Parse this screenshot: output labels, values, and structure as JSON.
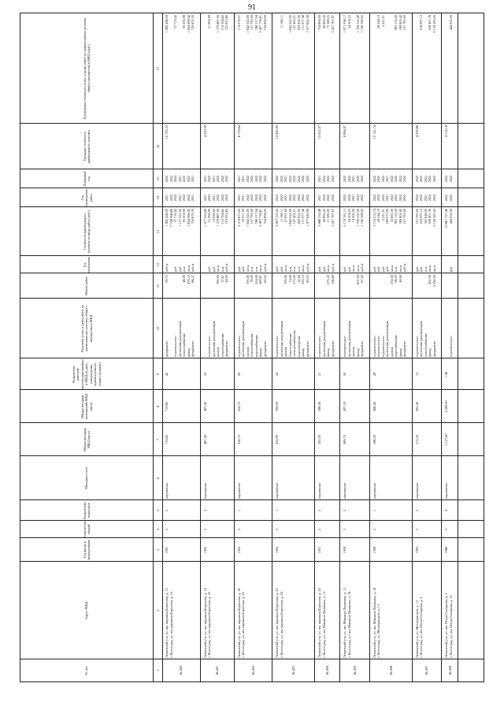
{
  "page_number": "91",
  "headers": [
    "№ п/п",
    "Адрес МКД",
    "Год ввода в эксплуатацию",
    "Количество этажей",
    "Количество подъездов",
    "Материал стен",
    "Общая площадь МКД (кв.м)",
    "Общая площадь помещений МКД (кв.м)",
    "Количество жителей, зарегистрированных в МКД на дату утверждения краткосрочного плана (человек)",
    "Перечень услуг и (или) работ по капитальному ремонту общего имущества в МКД",
    "Объем работ",
    "Ед. измерения",
    "Стоимость капитального ремонта по виду работ (руб.)",
    "Год проведения работ",
    "Плановый год",
    "Удельная стоимость капитального ремонта",
    "Предельная стоимость услуг и (или) работ по капитальному ремонту общего имущества в МКД (руб.)"
  ],
  "column_numbers": [
    "1",
    "2",
    "3",
    "4",
    "5",
    "6",
    "7",
    "8",
    "9",
    "10",
    "11",
    "12",
    "13",
    "14",
    "15",
    "16",
    "17"
  ],
  "rows": [
    {
      "num": "56.490",
      "address": [
        "Ленинский р-н, ул. им. маршала Бирюзова, д. 15",
        "г. Волгоград, ул. им. маршала Бирюзова, д. 14"
      ],
      "year": "1991",
      "floors": "2",
      "entrances": "2",
      "material": "кирпичные",
      "area_total": "719,60",
      "area_premises": "719,60",
      "residents": "42",
      "works": [
        "фундамент",
        "",
        "строительного",
        "проектная документация",
        "теплоснабжение",
        "фасад",
        "фундамент"
      ],
      "volumes": [
        "99,75",
        "",
        "",
        "",
        "46,00",
        "478,10",
        "66,27"
      ],
      "units": [
        "куб.м.",
        "",
        "руб.",
        "руб.",
        "п.м.",
        "кв.м.",
        "куб.м."
      ],
      "costs": [
        "1 882 456,00",
        "7 336 906,68",
        "57 719,42",
        "1 127 523,00",
        "95 505,98",
        "1 654 088,42",
        "720 670,30"
      ],
      "years": [
        "2021",
        "2022",
        "2022",
        "2021",
        "2022",
        "2022",
        "2021"
      ],
      "plan_years": [
        "2022",
        "2022",
        "2022",
        "2021",
        "2022",
        "2022",
        "2021"
      ],
      "unit_cost": "10 195,33",
      "limit": [
        "1 882 456,00",
        "",
        "57 719,42",
        "",
        "95 505,98",
        "1 654 088,42",
        "720 670,30"
      ]
    },
    {
      "num": "56.491",
      "address": [
        "Ленинский р-н, ул. им. маршала Бирюзова, д. 14",
        "г. Волгоград, ул. им. маршала Бирюзова, д. 16"
      ],
      "year": "1955",
      "floors": "2",
      "entrances": "2",
      "material": "кирпичные",
      "area_total": "467,40",
      "area_premises": "467,40",
      "residents": "30",
      "works": [
        "",
        "строительного",
        "проектная документация",
        "кровля",
        "теплоснабжение",
        "фундамент"
      ],
      "volumes": [
        "",
        "",
        "",
        "380,00",
        "57,61",
        "44,00"
      ],
      "units": [
        "",
        "руб.",
        "руб.",
        "кв.м.",
        "п.м.",
        "куб.м."
      ],
      "costs": [
        "1 577 053,68",
        "51 894,99",
        "10 929,00",
        "1 379 667,00",
        "119 394,62",
        "723 953,60"
      ],
      "years": [
        "2021",
        "2022",
        "2021",
        "2022",
        "2022",
        "2022"
      ],
      "plan_years": [
        "2021",
        "2022",
        "2021",
        "2022",
        "2022",
        "2022"
      ],
      "unit_cost": "4 229,30",
      "limit": [
        "",
        "51 894,99",
        "",
        "1 379 667,00",
        "119 394,62",
        "723 953,60"
      ]
    },
    {
      "num": "56.492",
      "address": [
        "Ленинский р-н, ул. им. маршала Бирюзова, д. 16",
        "г. Волгоград, ул. им. маршала Бирюзова, д. 22"
      ],
      "year": "1955",
      "floors": "2",
      "entrances": "1",
      "material": "кирпичные",
      "area_total": "416,70",
      "area_premises": "416,70",
      "residents": "28",
      "works": [
        "строительного",
        "проектная документация",
        "кровля",
        "теплоснабжение",
        "водоснабжение",
        "фасад",
        "фундамент"
      ],
      "volumes": [
        "",
        "",
        "395,00",
        "76,00",
        "554,00",
        "560,61",
        "60,03"
      ],
      "units": [
        "руб.",
        "руб.",
        "кв.м.",
        "п.м.",
        "п.м.",
        "кв.м.",
        "куб.м."
      ],
      "costs": [
        "2 574 673,43",
        "22 811,00",
        "1 642 022,00",
        "157 783,00",
        "768 317,94",
        "2 497 738,61",
        "754 894,00"
      ],
      "years": [
        "2021",
        "2021",
        "2022",
        "2022",
        "2022",
        "2022",
        "2022"
      ],
      "plan_years": [
        "2021",
        "2021",
        "2022",
        "2022",
        "2022",
        "2022",
        "2022"
      ],
      "unit_cost": "6 178,64",
      "limit": [
        "114 078,27",
        "",
        "1 642 022,00",
        "157 783,00",
        "768 317,94",
        "2 497 738,61",
        "754 894,00"
      ]
    },
    {
      "num": "56.493",
      "address": [
        "Ленинский р-н, ул. им. маршала Бирюзова, д. 22",
        "г. Волгоград, ул. им. маршала Бирюзова, д. 24"
      ],
      "year": "1955",
      "floors": "2",
      "entrances": "1",
      "material": "кирпичные",
      "area_total": "435,99",
      "area_premises": "390,99",
      "residents": "24",
      "works": [
        "строительного",
        "проектная документация",
        "кровля",
        "теплоснабжение",
        "электроснабжение",
        "водоотведение",
        "фасад",
        "фундамент"
      ],
      "volumes": [
        "",
        "",
        "395,00",
        "74,00",
        "375,00",
        "52,00",
        "550,12",
        "60,03"
      ],
      "units": [
        "руб.",
        "руб.",
        "кв.м.",
        "п.м.",
        "п.м.",
        "п.м.",
        "кв.м.",
        "куб.м."
      ],
      "costs": [
        "5 857 103,43",
        "11 160,11",
        "21 853,00",
        "1 642 022,00",
        "147 405,21",
        "820 852,50",
        "131 977,56",
        "1 977 620,08"
      ],
      "years": [
        "2022",
        "2022",
        "2021",
        "2022",
        "2022",
        "2022",
        "2022",
        "2022"
      ],
      "plan_years": [
        "2022",
        "2022",
        "2021",
        "2022",
        "2022",
        "2022",
        "2022",
        "2022"
      ],
      "unit_cost": "14 495,00",
      "limit": [
        "",
        "11 160,11",
        "",
        "1 642 022,00",
        "147 405,21",
        "820 852,50",
        "131 977,56",
        "1 977 620,08"
      ]
    },
    {
      "num": "56.494",
      "address": [
        "Ленинский р-н, ул. им. маршала Бирюзова, д. 24",
        "г. Волгоград, ул. им. Михаила Паникахи, д. 12"
      ],
      "year": "1957",
      "floors": "2",
      "entrances": "2",
      "material": "кирпичные",
      "area_total": "430,50",
      "area_premises": "386,40",
      "residents": "21",
      "works": [
        "строительного",
        "проектная документация",
        "фасад",
        "фундамент"
      ],
      "volumes": [
        "",
        "",
        "570,20",
        "106,60"
      ],
      "units": [
        "руб.",
        "руб.",
        "кв.м.",
        "куб.м."
      ],
      "costs": [
        "5 866 354,46",
        "40 695,43",
        "21 580,00",
        "3 437 767,87"
      ],
      "years": [
        "2021",
        "2022",
        "2022",
        "2022"
      ],
      "plan_years": [
        "2021",
        "2022",
        "2022",
        "2022"
      ],
      "unit_cost": "15 022,07",
      "limit": [
        "754 894,00",
        "40 695,43",
        "73 368,25",
        "3 437 767,87"
      ]
    },
    {
      "num": "56.495",
      "address": [
        "Ленинский р-н, ул. им. Михаила Паникахи, д. 12",
        "г. Волгоград, ул. им. Михаила Паникахи, д. 16"
      ],
      "year": "1959",
      "floors": "3",
      "entrances": "2",
      "material": "кирпичные",
      "area_total": "569,70",
      "area_premises": "497,30",
      "residents": "50",
      "works": [
        "строительного",
        "проектная документация",
        "кровля",
        "фасад",
        "фундамент"
      ],
      "volumes": [
        "",
        "",
        "",
        "607,00",
        "67,20"
      ],
      "units": [
        "руб.",
        "руб.",
        "кв.м.",
        "кв.м.",
        "куб.м."
      ],
      "costs": [
        "5 174 181,13",
        "24 504,23",
        "14 200,00",
        "1 709 332,49",
        "1 740 398,02"
      ],
      "years": [
        "2022",
        "2022",
        "2021",
        "2022",
        "2022"
      ],
      "plan_years": [
        "2022",
        "2022",
        "2021",
        "2022",
        "2022"
      ],
      "unit_cost": "8 984,97",
      "limit": [
        "1 871 936,17",
        "24 504,23",
        "",
        "1 709 332,49",
        "1 740 398,02"
      ]
    },
    {
      "num": "56.496",
      "address": [
        "Ленинский р-н, ул. им. Михаила Паникахи, д. 16",
        "г. Волгоград, ул. Мелиораторов, д. 13"
      ],
      "year": "1958",
      "floors": "2",
      "entrances": "1",
      "material": "кирпичные",
      "area_total": "596,50",
      "area_premises": "566,40",
      "residents": "28",
      "works": [
        "строительного",
        "строительного",
        "строительного",
        "проектная документация",
        "кровля",
        "водоснабжение",
        "фасад",
        "фундамент"
      ],
      "volumes": [
        "",
        "",
        "",
        "",
        "530,50",
        "96,03",
        "48,00",
        ""
      ],
      "units": [
        "руб.",
        "руб.",
        "руб.",
        "руб.",
        "кв.м.",
        "п.м.",
        "кв.м.",
        "куб.м."
      ],
      "costs": [
        "3 718 215,74",
        "28 544,19",
        "2 221,01",
        "168 073,00",
        "32 681,00",
        "983 135,59",
        "389 805,42",
        "101 783,00"
      ],
      "years": [
        "2022",
        "2022",
        "2022",
        "2021",
        "2022",
        "2022",
        "2022",
        "2022"
      ],
      "plan_years": [
        "2022",
        "2022",
        "2022",
        "2021",
        "2022",
        "2022",
        "2022",
        "2022"
      ],
      "unit_cost": "10 141,74",
      "limit": [
        "",
        "28 544,19",
        "2 221,01",
        "",
        "",
        "983 135,59",
        "389 805,42",
        "101 783,00"
      ]
    },
    {
      "num": "56.497",
      "address": [
        "Ленинский р-н, ул. Мелиораторов, д. 13",
        "г. Волгоград, ул. им. Петра Гончарова, д. 2"
      ],
      "year": "1993",
      "floors": "2",
      "entrances": "2",
      "material": "кирпичные",
      "area_total": "315,30",
      "area_premises": "285,40",
      "residents": "15",
      "works": [
        "строительного",
        "проектная документация",
        "теплоснабжение",
        "фасад",
        "фундамент"
      ],
      "volumes": [
        "",
        "",
        "",
        "452,00",
        "2 382,00"
      ],
      "units": [
        "руб.",
        "руб.",
        "п.м.",
        "кв.м.",
        "кв.м."
      ],
      "costs": [
        "101 783,00",
        "216 097,12",
        "347 649,00",
        "938 401,76",
        "9 159 583,00"
      ],
      "years": [
        "2022",
        "2022",
        "2021",
        "2022",
        "2022"
      ],
      "plan_years": [
        "2022",
        "2022",
        "2021",
        "2022",
        "2022"
      ],
      "unit_cost": "4 200,66",
      "limit": [
        "",
        "216 097,12",
        "",
        "938 401,76",
        "9 159 583,00"
      ]
    },
    {
      "num": "56.498",
      "address": [
        "Ленинский р-н, ул. им. Петра Гончарова, д. 2",
        "г. Волгоград, ул. им. Петра Гончарова, д. 10"
      ],
      "year": "1966",
      "floors": "5",
      "entrances": "4",
      "material": "кирпичные",
      "area_total": "3 127,60",
      "area_premises": "2 589,90",
      "residents": "106",
      "works": [
        "",
        "строительного"
      ],
      "volumes": [
        "",
        ""
      ],
      "units": [
        "",
        "руб."
      ],
      "costs": [
        "10 661 727,48",
        "444 932,00"
      ],
      "years": [
        "2022",
        "2022"
      ],
      "plan_years": [
        "2022",
        "2022"
      ],
      "unit_cost": "4 116,16",
      "limit": [
        "",
        "444 932,00"
      ]
    }
  ]
}
